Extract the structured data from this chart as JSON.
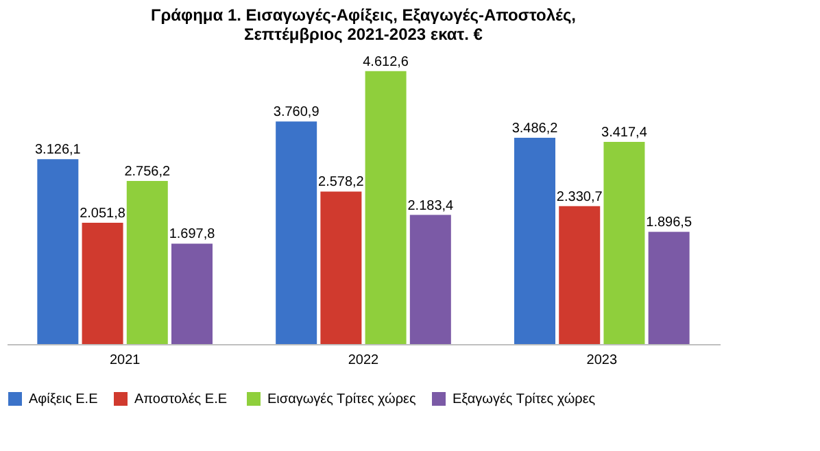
{
  "chart_data": {
    "type": "bar",
    "title": "Γράφημα 1. Εισαγωγές-Αφίξεις, Εξαγωγές-Αποστολές,\nΣεπτέμβριος 2021-2023 εκατ. €",
    "categories": [
      "2021",
      "2022",
      "2023"
    ],
    "legend": "bottom",
    "series": [
      {
        "name": "Αφίξεις Ε.Ε",
        "color": "#3b73c9",
        "values": [
          3126.1,
          3760.9,
          3486.2
        ],
        "value_labels": [
          "3.126,1",
          "3.760,9",
          "3.486,2"
        ]
      },
      {
        "name": "Αποστολές  Ε.Ε",
        "color": "#d03a2e",
        "values": [
          2051.8,
          2578.2,
          2330.7
        ],
        "value_labels": [
          "2.051,8",
          "2.578,2",
          "2.330,7"
        ]
      },
      {
        "name": "Εισαγωγές Τρίτες χώρες",
        "color": "#8fcf3c",
        "values": [
          2756.2,
          4612.6,
          3417.4
        ],
        "value_labels": [
          "2.756,2",
          "4.612,6",
          "3.417,4"
        ]
      },
      {
        "name": "Εξαγωγές Τρίτες χώρες",
        "color": "#7b5aa6",
        "values": [
          1697.8,
          2183.4,
          1896.5
        ],
        "value_labels": [
          "1.697,8",
          "2.183,4",
          "1.896,5"
        ]
      }
    ]
  }
}
